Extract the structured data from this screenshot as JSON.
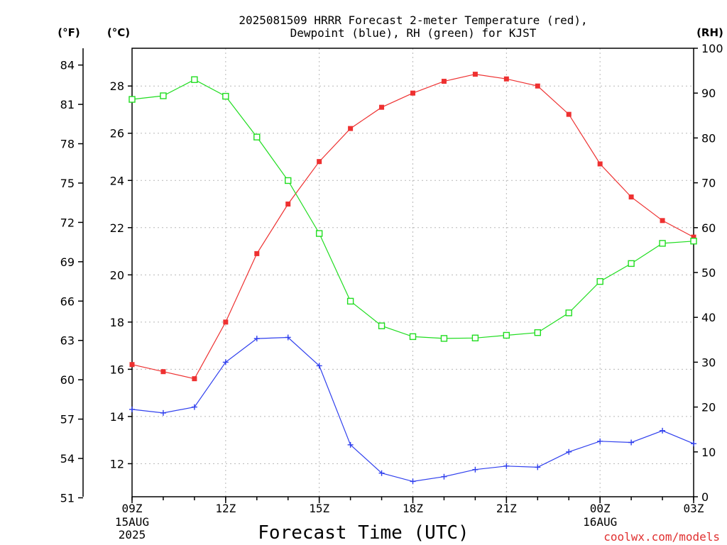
{
  "chart_data": {
    "type": "line",
    "title_line1": "2025081509 HRRR Forecast 2-meter Temperature (red),",
    "title_line2": "Dewpoint (blue), RH (green) for KJST",
    "xlabel": "Forecast Time (UTC)",
    "watermark": "coolwx.com/models",
    "axis_units": {
      "fahrenheit": "(°F)",
      "celsius": "(°C)",
      "rh": "(RH)"
    },
    "x_hours": [
      "09Z",
      "10Z",
      "11Z",
      "12Z",
      "13Z",
      "14Z",
      "15Z",
      "16Z",
      "17Z",
      "18Z",
      "19Z",
      "20Z",
      "21Z",
      "22Z",
      "23Z",
      "00Z",
      "01Z",
      "02Z",
      "03Z"
    ],
    "x_ticks": [
      {
        "index": 0,
        "label": "09Z",
        "sub": [
          "15AUG",
          "2025"
        ]
      },
      {
        "index": 3,
        "label": "12Z",
        "sub": []
      },
      {
        "index": 6,
        "label": "15Z",
        "sub": []
      },
      {
        "index": 9,
        "label": "18Z",
        "sub": []
      },
      {
        "index": 12,
        "label": "21Z",
        "sub": []
      },
      {
        "index": 15,
        "label": "00Z",
        "sub": [
          "16AUG"
        ]
      },
      {
        "index": 18,
        "label": "03Z",
        "sub": []
      }
    ],
    "celsius_range": [
      10.6,
      29.6
    ],
    "celsius_ticks": [
      12,
      14,
      16,
      18,
      20,
      22,
      24,
      26,
      28
    ],
    "fahrenheit_ticks": [
      51,
      54,
      57,
      60,
      63,
      66,
      69,
      72,
      75,
      78,
      81,
      84
    ],
    "rh_range": [
      0,
      100
    ],
    "rh_ticks": [
      0,
      10,
      20,
      30,
      40,
      50,
      60,
      70,
      80,
      90,
      100
    ],
    "grid": true,
    "series": [
      {
        "name": "Temperature",
        "units": "C",
        "axis": "celsius",
        "color": "#ee3030",
        "marker": "filled-square",
        "values": [
          16.2,
          15.9,
          15.6,
          18.0,
          20.9,
          23.0,
          24.8,
          26.2,
          27.1,
          27.7,
          28.2,
          28.5,
          28.3,
          28.0,
          26.8,
          24.7,
          23.3,
          22.3,
          21.6
        ]
      },
      {
        "name": "Dewpoint",
        "units": "C",
        "axis": "celsius",
        "color": "#3040ee",
        "marker": "plus",
        "values": [
          14.3,
          14.15,
          14.4,
          16.3,
          17.3,
          17.35,
          16.15,
          12.8,
          11.6,
          11.25,
          11.45,
          11.75,
          11.9,
          11.85,
          12.5,
          12.95,
          12.9,
          13.4,
          12.85
        ]
      },
      {
        "name": "RH",
        "units": "%",
        "axis": "rh",
        "color": "#20dd20",
        "marker": "open-square",
        "values": [
          88.6,
          89.4,
          93.0,
          89.3,
          80.2,
          70.5,
          58.7,
          43.6,
          38.1,
          35.7,
          35.3,
          35.4,
          36.0,
          36.6,
          41.0,
          48.0,
          52.0,
          56.5,
          57.0
        ]
      }
    ]
  }
}
